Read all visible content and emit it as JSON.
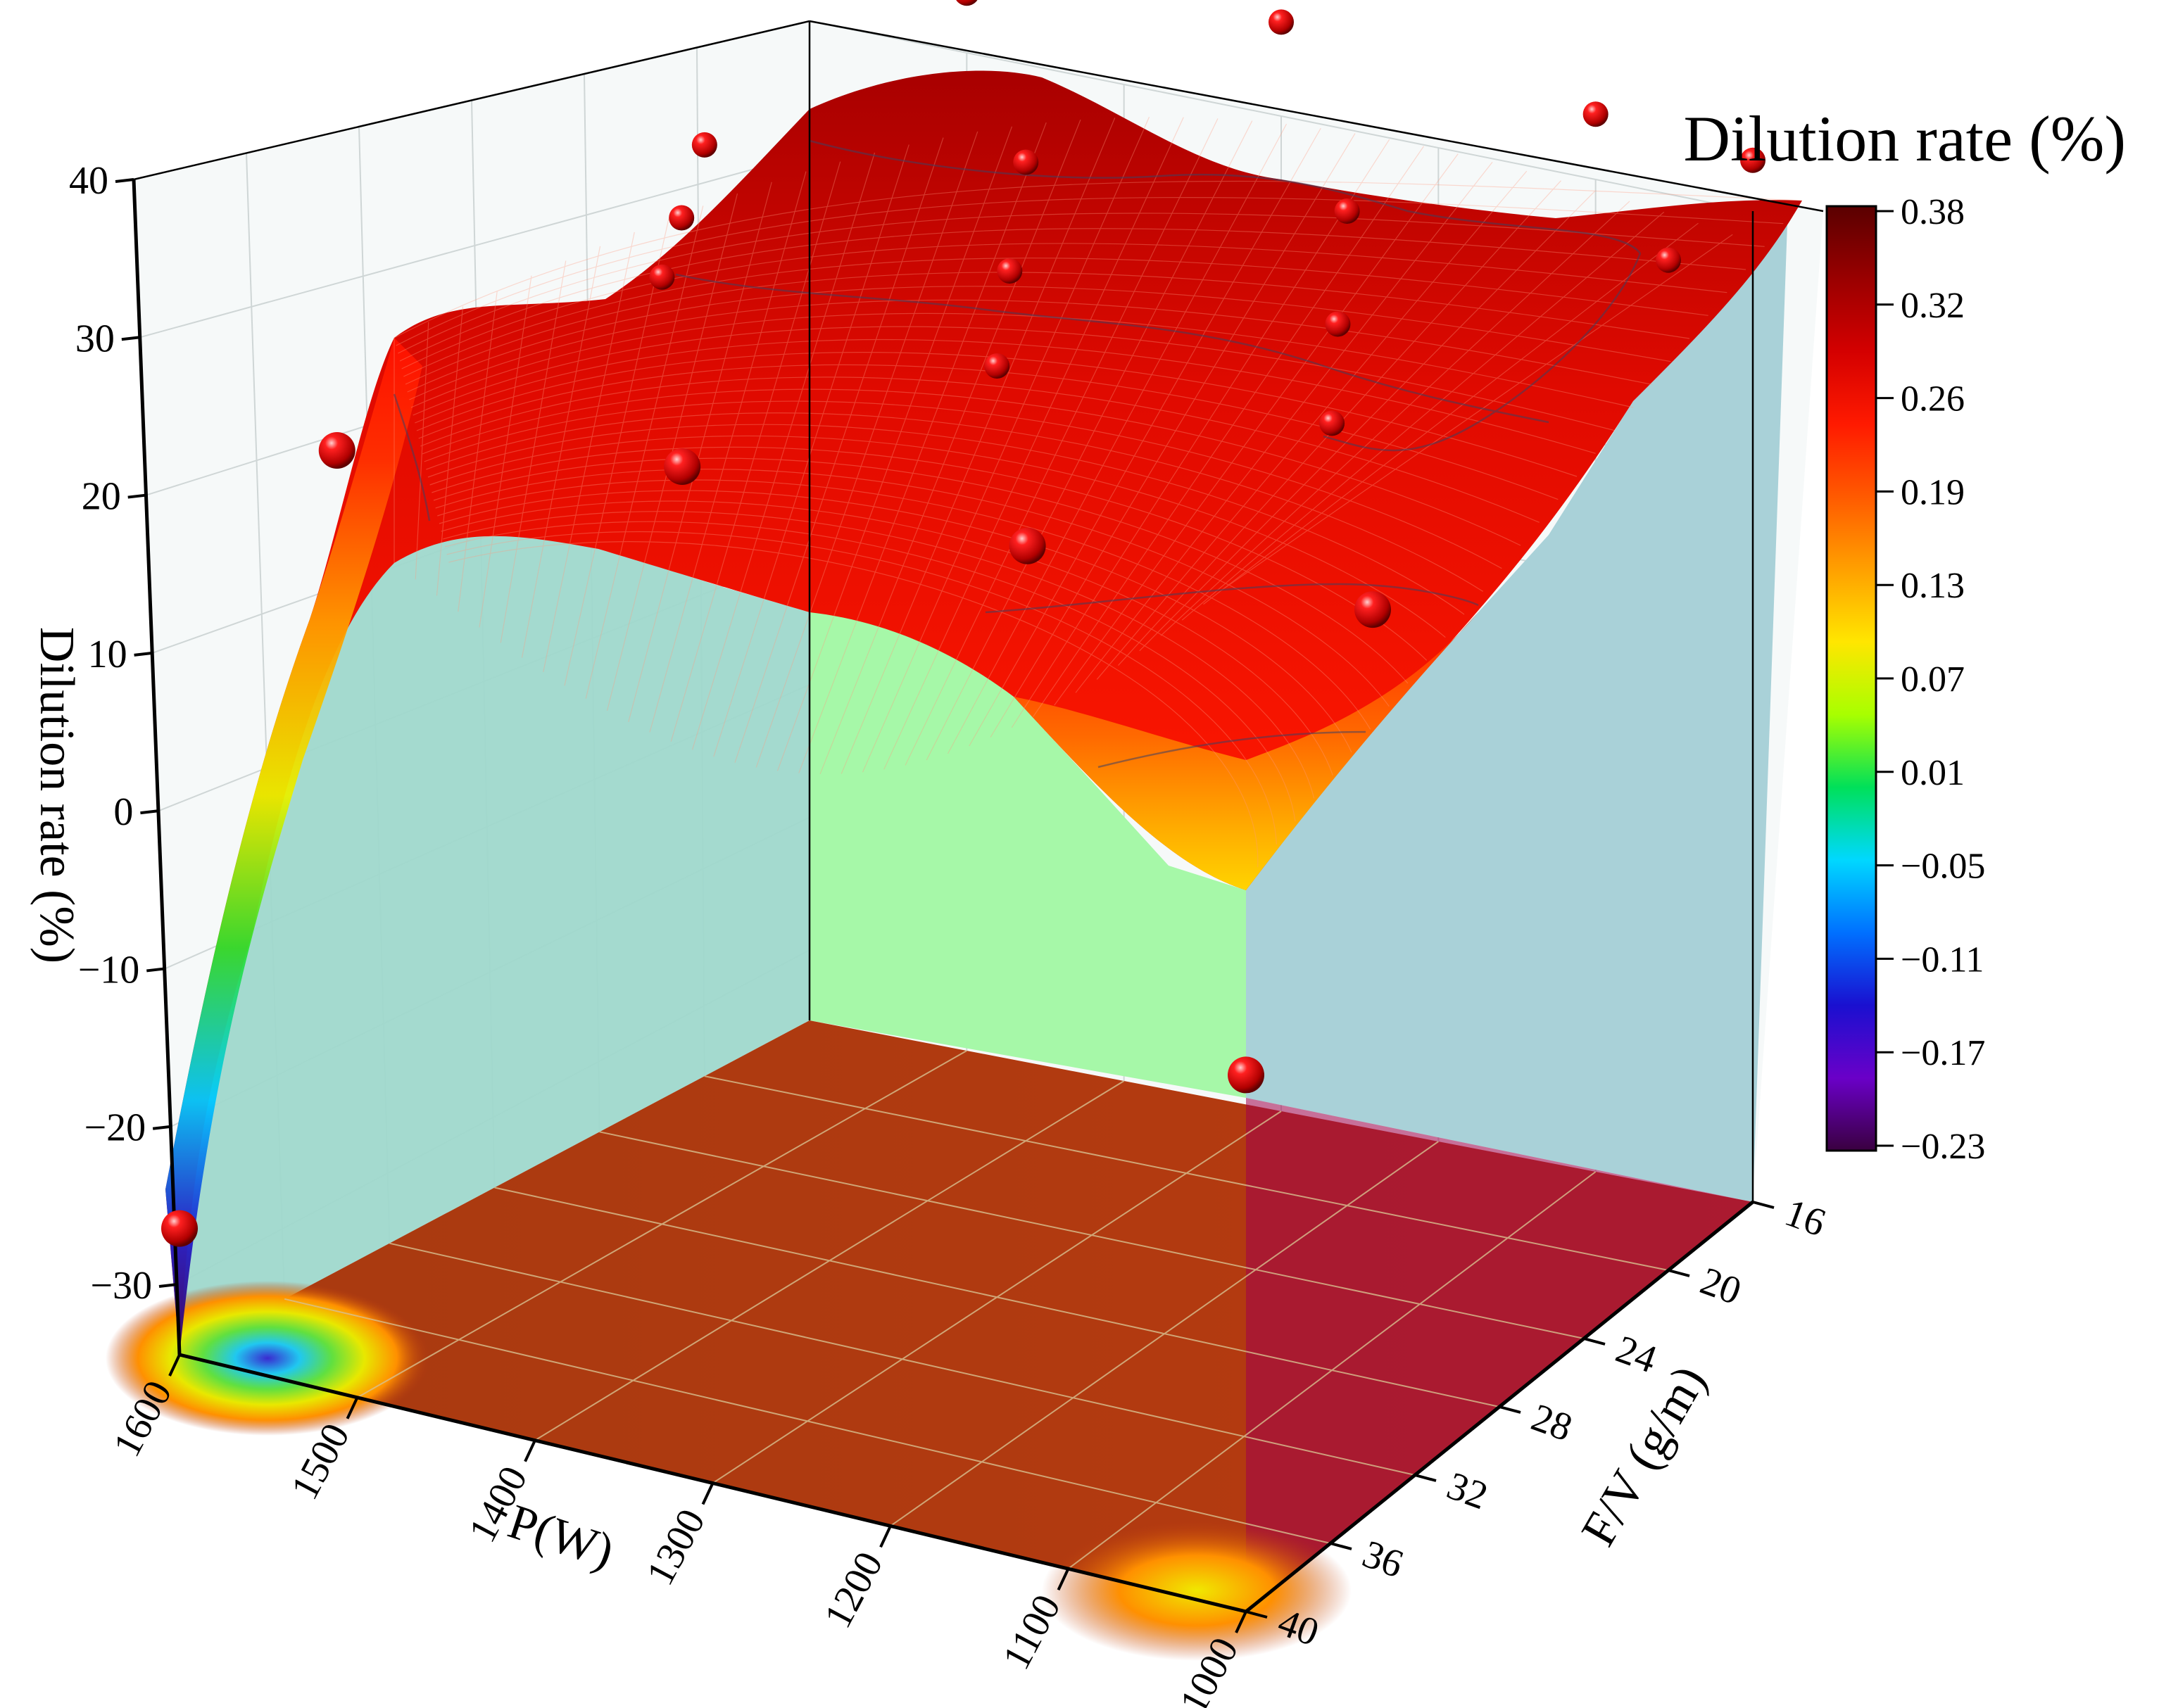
{
  "chart_data": {
    "type": "surface3d",
    "legend_title": "Dilution rate (%)",
    "z_axis": {
      "label": "Dilution rate (%)",
      "range": [
        -30,
        40
      ],
      "ticks": [
        "40",
        "30",
        "20",
        "10",
        "0",
        "−10",
        "−20",
        "−30"
      ]
    },
    "x_axis": {
      "label": "P(W)",
      "range": [
        1000,
        1600
      ],
      "ticks": [
        "1600",
        "1500",
        "1400",
        "1300",
        "1200",
        "1100",
        "1000"
      ]
    },
    "y_axis": {
      "label": "F/V (g/m)",
      "range": [
        16,
        40
      ],
      "ticks": [
        "16",
        "20",
        "24",
        "28",
        "32",
        "36",
        "40"
      ]
    },
    "colorbar": {
      "ticks": [
        "0.38",
        "0.32",
        "0.26",
        "0.19",
        "0.13",
        "0.07",
        "0.01",
        "−0.05",
        "−0.11",
        "−0.17",
        "−0.23"
      ],
      "colors": [
        "#5a0000",
        "#9a0000",
        "#d40000",
        "#ff1a00",
        "#ff5a00",
        "#ffa000",
        "#ffe600",
        "#a8ff00",
        "#00e05a",
        "#00d8ff",
        "#0070ff",
        "#1a10d0",
        "#6a00c8",
        "#3a0040"
      ]
    },
    "points": [
      {
        "P": 1500,
        "FV": 16,
        "z": 37
      },
      {
        "P": 1300,
        "FV": 16,
        "z": 39
      },
      {
        "P": 1100,
        "FV": 16,
        "z": 37
      },
      {
        "P": 1000,
        "FV": 16,
        "z": 36
      },
      {
        "P": 1600,
        "FV": 20,
        "z": 29
      },
      {
        "P": 1400,
        "FV": 20,
        "z": 32
      },
      {
        "P": 1200,
        "FV": 20,
        "z": 33
      },
      {
        "P": 1000,
        "FV": 20,
        "z": 34
      },
      {
        "P": 1550,
        "FV": 24,
        "z": 29
      },
      {
        "P": 1350,
        "FV": 24,
        "z": 30
      },
      {
        "P": 1150,
        "FV": 24,
        "z": 31
      },
      {
        "P": 1500,
        "FV": 28,
        "z": 30
      },
      {
        "P": 1300,
        "FV": 28,
        "z": 29
      },
      {
        "P": 1100,
        "FV": 28,
        "z": 30
      },
      {
        "P": 1600,
        "FV": 34,
        "z": 22
      },
      {
        "P": 1400,
        "FV": 34,
        "z": 26
      },
      {
        "P": 1200,
        "FV": 34,
        "z": 26
      },
      {
        "P": 1000,
        "FV": 34,
        "z": 27
      },
      {
        "P": 1600,
        "FV": 40,
        "z": -22
      },
      {
        "P": 1000,
        "FV": 40,
        "z": 4
      }
    ]
  }
}
